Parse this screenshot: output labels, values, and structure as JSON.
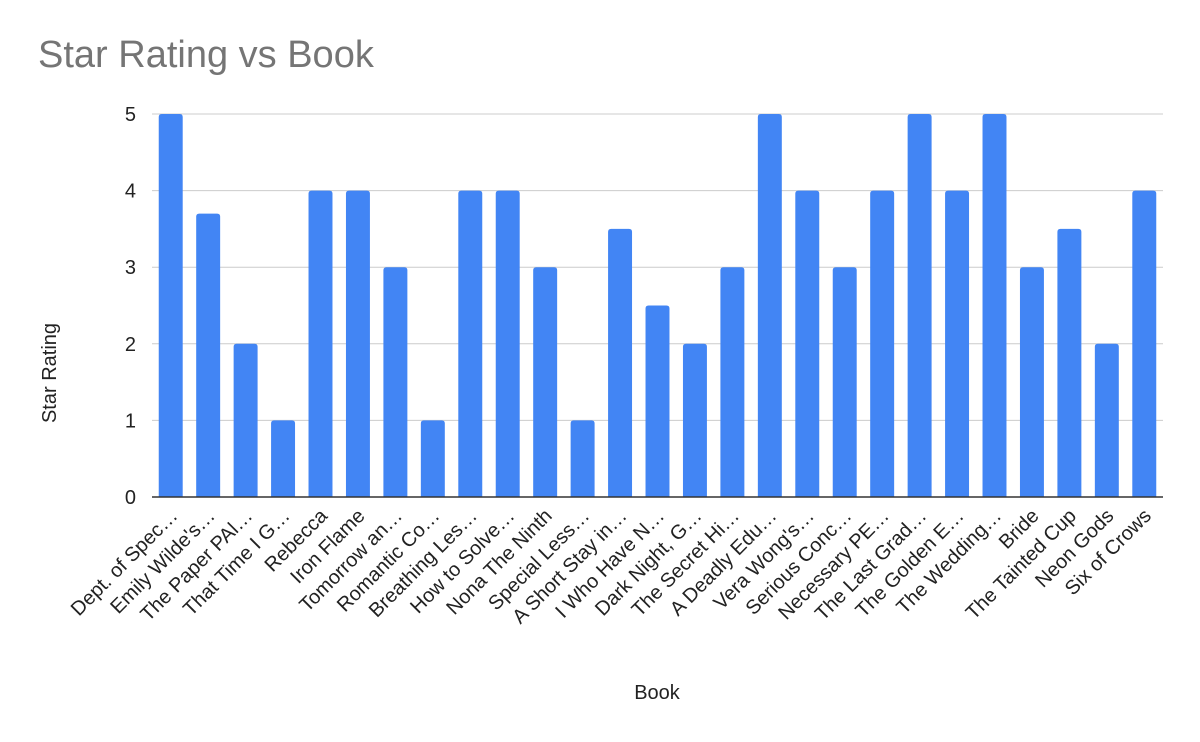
{
  "chart_data": {
    "type": "bar",
    "title": "Star Rating vs Book",
    "xlabel": "Book",
    "ylabel": "Star Rating",
    "ylim": [
      0,
      5
    ],
    "yticks": [
      0,
      1,
      2,
      3,
      4,
      5
    ],
    "grid": true,
    "legend": "none",
    "bar_color": "#4285f4",
    "categories": [
      "Dept. of Spec…",
      "Emily Wilde's…",
      "The Paper PAl…",
      "That Time I G…",
      "Rebecca",
      "Iron Flame",
      "Tomorrow an…",
      "Romantic Co…",
      "Breathing Les…",
      "How to Solve…",
      "Nona The Ninth",
      "Special Less…",
      "A Short Stay in…",
      "I Who Have N…",
      "Dark Night, G…",
      "The Secret Hi…",
      "A Deadly Edu…",
      "Vera Wong's…",
      "Serious Conc…",
      "Necessary PE…",
      "The Last Grad…",
      "The Golden E…",
      "The Wedding…",
      "Bride",
      "The Tainted Cup",
      "Neon Gods",
      "Six of Crows"
    ],
    "values": [
      5,
      3.7,
      2,
      1,
      4,
      4,
      3,
      1,
      4,
      4,
      3,
      1,
      3.5,
      2.5,
      2,
      3,
      5,
      4,
      3,
      4,
      5,
      4,
      5,
      3,
      3.5,
      2,
      4
    ]
  }
}
